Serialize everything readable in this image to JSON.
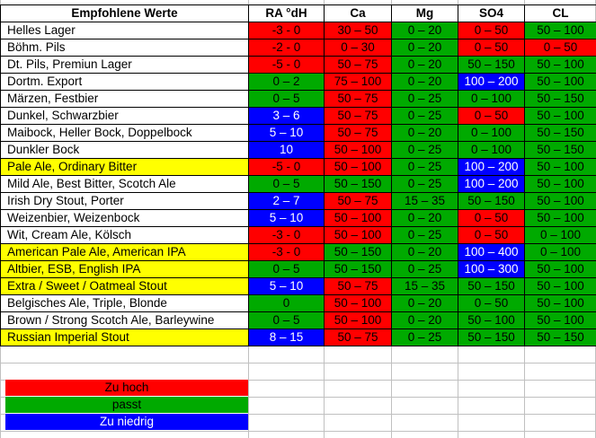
{
  "headers": [
    "Empfohlene Werte",
    "RA °dH",
    "Ca",
    "Mg",
    "SO4",
    "CL"
  ],
  "rows": [
    {
      "name": "Helles Lager",
      "name_bg": "w",
      "cells": [
        [
          "-3 - 0",
          "r"
        ],
        [
          "30 – 50",
          "r"
        ],
        [
          "0 – 20",
          "g"
        ],
        [
          "0 – 50",
          "r"
        ],
        [
          "50 – 100",
          "g"
        ]
      ]
    },
    {
      "name": "Böhm. Pils",
      "name_bg": "w",
      "cells": [
        [
          "-2 - 0",
          "r"
        ],
        [
          "0 – 30",
          "r"
        ],
        [
          "0 – 20",
          "g"
        ],
        [
          "0 – 50",
          "r"
        ],
        [
          "0 – 50",
          "r"
        ]
      ]
    },
    {
      "name": "Dt. Pils, Premiun Lager",
      "name_bg": "w",
      "cells": [
        [
          "-5 - 0",
          "r"
        ],
        [
          "50 – 75",
          "r"
        ],
        [
          "0 – 20",
          "g"
        ],
        [
          "50 – 150",
          "g"
        ],
        [
          "50 – 100",
          "g"
        ]
      ]
    },
    {
      "name": "Dortm. Export",
      "name_bg": "w",
      "cells": [
        [
          "0 – 2",
          "g"
        ],
        [
          "75 – 100",
          "r"
        ],
        [
          "0 – 20",
          "g"
        ],
        [
          "100 – 200",
          "b"
        ],
        [
          "50 – 100",
          "g"
        ]
      ]
    },
    {
      "name": "Märzen, Festbier",
      "name_bg": "w",
      "cells": [
        [
          "0 – 5",
          "g"
        ],
        [
          "50 – 75",
          "r"
        ],
        [
          "0 – 25",
          "g"
        ],
        [
          "0 – 100",
          "g"
        ],
        [
          "50 – 150",
          "g"
        ]
      ]
    },
    {
      "name": "Dunkel, Schwarzbier",
      "name_bg": "w",
      "cells": [
        [
          "3 – 6",
          "b"
        ],
        [
          "50 – 75",
          "r"
        ],
        [
          "0 – 25",
          "g"
        ],
        [
          "0 – 50",
          "r"
        ],
        [
          "50 – 100",
          "g"
        ]
      ]
    },
    {
      "name": "Maibock, Heller Bock, Doppelbock",
      "name_bg": "w",
      "cells": [
        [
          "5 – 10",
          "b"
        ],
        [
          "50 – 75",
          "r"
        ],
        [
          "0 – 20",
          "g"
        ],
        [
          "0 – 100",
          "g"
        ],
        [
          "50 – 150",
          "g"
        ]
      ]
    },
    {
      "name": "Dunkler Bock",
      "name_bg": "w",
      "cells": [
        [
          "10",
          "b"
        ],
        [
          "50 – 100",
          "r"
        ],
        [
          "0 – 25",
          "g"
        ],
        [
          "0 – 100",
          "g"
        ],
        [
          "50 – 150",
          "g"
        ]
      ]
    },
    {
      "name": "Pale Ale, Ordinary Bitter",
      "name_bg": "y",
      "cells": [
        [
          "-5 - 0",
          "r"
        ],
        [
          "50 – 100",
          "r"
        ],
        [
          "0 – 25",
          "g"
        ],
        [
          "100 – 200",
          "b"
        ],
        [
          "50 – 100",
          "g"
        ]
      ]
    },
    {
      "name": "Mild Ale, Best Bitter, Scotch Ale",
      "name_bg": "w",
      "cells": [
        [
          "0 – 5",
          "g"
        ],
        [
          "50 – 150",
          "g"
        ],
        [
          "0 – 25",
          "g"
        ],
        [
          "100 – 200",
          "b"
        ],
        [
          "50 – 100",
          "g"
        ]
      ]
    },
    {
      "name": "Irish Dry Stout, Porter",
      "name_bg": "w",
      "cells": [
        [
          "2 – 7",
          "b"
        ],
        [
          "50 – 75",
          "r"
        ],
        [
          "15 – 35",
          "g"
        ],
        [
          "50 – 150",
          "g"
        ],
        [
          "50 – 100",
          "g"
        ]
      ]
    },
    {
      "name": "Weizenbier, Weizenbock",
      "name_bg": "w",
      "cells": [
        [
          "5 – 10",
          "b"
        ],
        [
          "50 – 100",
          "r"
        ],
        [
          "0 – 20",
          "g"
        ],
        [
          "0 – 50",
          "r"
        ],
        [
          "50 – 100",
          "g"
        ]
      ]
    },
    {
      "name": "Wit, Cream Ale, Kölsch",
      "name_bg": "w",
      "cells": [
        [
          "-3 - 0",
          "r"
        ],
        [
          "50 – 100",
          "r"
        ],
        [
          "0 – 25",
          "g"
        ],
        [
          "0 – 50",
          "r"
        ],
        [
          "0 – 100",
          "g"
        ]
      ]
    },
    {
      "name": "American Pale Ale, American IPA",
      "name_bg": "y",
      "cells": [
        [
          "-3 - 0",
          "r"
        ],
        [
          "50 – 150",
          "g"
        ],
        [
          "0 – 20",
          "g"
        ],
        [
          "100 – 400",
          "b"
        ],
        [
          "0 – 100",
          "g"
        ]
      ]
    },
    {
      "name": "Altbier, ESB, English IPA",
      "name_bg": "y",
      "cells": [
        [
          "0 – 5",
          "g"
        ],
        [
          "50 – 150",
          "g"
        ],
        [
          "0 – 25",
          "g"
        ],
        [
          "100 – 300",
          "b"
        ],
        [
          "50 – 100",
          "g"
        ]
      ]
    },
    {
      "name": "Extra / Sweet / Oatmeal Stout",
      "name_bg": "y",
      "cells": [
        [
          "5 – 10",
          "b"
        ],
        [
          "50 – 75",
          "r"
        ],
        [
          "15 – 35",
          "g"
        ],
        [
          "50 – 150",
          "g"
        ],
        [
          "50 – 100",
          "g"
        ]
      ]
    },
    {
      "name": "Belgisches Ale, Triple, Blonde",
      "name_bg": "w",
      "cells": [
        [
          "0",
          "g"
        ],
        [
          "50 – 100",
          "r"
        ],
        [
          "0 – 20",
          "g"
        ],
        [
          "0 – 50",
          "g"
        ],
        [
          "50 – 100",
          "g"
        ]
      ]
    },
    {
      "name": "Brown / Strong Scotch Ale, Barleywine",
      "name_bg": "w",
      "cells": [
        [
          "0 – 5",
          "g"
        ],
        [
          "50 – 100",
          "r"
        ],
        [
          "0 – 20",
          "g"
        ],
        [
          "50 – 100",
          "g"
        ],
        [
          "50 – 100",
          "g"
        ]
      ]
    },
    {
      "name": "Russian Imperial Stout",
      "name_bg": "y",
      "cells": [
        [
          "8 – 15",
          "b"
        ],
        [
          "50 – 75",
          "r"
        ],
        [
          "0 – 25",
          "g"
        ],
        [
          "50 – 150",
          "g"
        ],
        [
          "50 – 150",
          "g"
        ]
      ]
    }
  ],
  "legend": [
    {
      "label": "Zu hoch",
      "color": "r"
    },
    {
      "label": "passt",
      "color": "g"
    },
    {
      "label": "Zu niedrig",
      "color": "b"
    }
  ],
  "colors": {
    "r": "#ff0000",
    "g": "#00aa00",
    "b": "#0000ff",
    "y": "#ffff00",
    "w": "#ffffff",
    "gridline": "#c0c0c0"
  }
}
